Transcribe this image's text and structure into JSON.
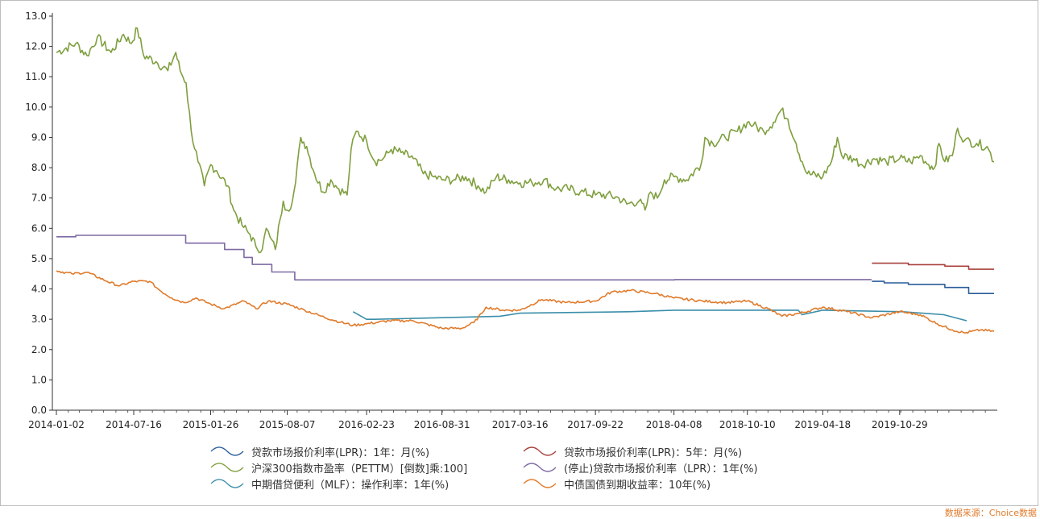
{
  "chart_data": {
    "type": "line",
    "title": "",
    "xlabel": "",
    "ylabel": "",
    "ylim": [
      0,
      13
    ],
    "y_ticks": [
      "0.0",
      "1.0",
      "2.0",
      "3.0",
      "4.0",
      "5.0",
      "6.0",
      "7.0",
      "8.0",
      "9.0",
      "10.0",
      "11.0",
      "12.0",
      "13.0"
    ],
    "x_range": [
      "2014-01-02",
      "2020-06-23"
    ],
    "x_ticks": [
      "2014-01-02",
      "2014-07-16",
      "2015-01-26",
      "2015-08-07",
      "2016-02-23",
      "2016-08-31",
      "2017-03-16",
      "2017-09-22",
      "2018-04-08",
      "2018-10-10",
      "2019-04-18",
      "2019-10-29"
    ],
    "grid": false,
    "legend_position": "bottom",
    "legend_columns": 2,
    "series": [
      {
        "name": "贷款市场报价利率(LPR)：1年：月(%)",
        "color": "#2a5c9a",
        "step": true,
        "points": [
          [
            "2019-08-20",
            4.25
          ],
          [
            "2019-09-20",
            4.2
          ],
          [
            "2019-11-20",
            4.15
          ],
          [
            "2020-02-20",
            4.05
          ],
          [
            "2020-04-20",
            3.85
          ],
          [
            "2020-06-23",
            3.85
          ]
        ]
      },
      {
        "name": "贷款市场报价利率(LPR)：5年：月(%)",
        "color": "#a8403c",
        "step": true,
        "points": [
          [
            "2019-08-20",
            4.85
          ],
          [
            "2019-11-20",
            4.8
          ],
          [
            "2020-02-20",
            4.75
          ],
          [
            "2020-04-20",
            4.65
          ],
          [
            "2020-06-23",
            4.65
          ]
        ]
      },
      {
        "name": "沪深300指数市盈率（PETTM）[倒数]乘:100]",
        "color": "#7f9f3e",
        "step": false,
        "points": [
          [
            "2014-01-02",
            11.8
          ],
          [
            "2014-02-20",
            12.1
          ],
          [
            "2014-03-20",
            11.7
          ],
          [
            "2014-04-15",
            12.3
          ],
          [
            "2014-05-20",
            11.8
          ],
          [
            "2014-06-20",
            12.4
          ],
          [
            "2014-07-10",
            12.1
          ],
          [
            "2014-07-25",
            12.6
          ],
          [
            "2014-08-10",
            11.7
          ],
          [
            "2014-09-10",
            11.5
          ],
          [
            "2014-10-10",
            11.2
          ],
          [
            "2014-10-30",
            11.8
          ],
          [
            "2014-11-10",
            11.2
          ],
          [
            "2014-11-25",
            10.8
          ],
          [
            "2014-12-08",
            9.2
          ],
          [
            "2014-12-25",
            8.2
          ],
          [
            "2015-01-10",
            7.4
          ],
          [
            "2015-01-26",
            8.1
          ],
          [
            "2015-02-10",
            7.9
          ],
          [
            "2015-03-10",
            7.4
          ],
          [
            "2015-03-25",
            6.6
          ],
          [
            "2015-04-15",
            6.1
          ],
          [
            "2015-05-05",
            5.8
          ],
          [
            "2015-05-20",
            5.4
          ],
          [
            "2015-06-05",
            5.3
          ],
          [
            "2015-06-15",
            6.0
          ],
          [
            "2015-06-25",
            5.7
          ],
          [
            "2015-07-08",
            5.3
          ],
          [
            "2015-07-20",
            6.3
          ],
          [
            "2015-07-28",
            6.9
          ],
          [
            "2015-08-07",
            6.6
          ],
          [
            "2015-08-20",
            6.9
          ],
          [
            "2015-08-28",
            7.5
          ],
          [
            "2015-09-10",
            9.0
          ],
          [
            "2015-09-25",
            8.7
          ],
          [
            "2015-10-15",
            7.8
          ],
          [
            "2015-11-05",
            7.2
          ],
          [
            "2015-11-25",
            7.6
          ],
          [
            "2015-12-15",
            7.3
          ],
          [
            "2016-01-05",
            7.1
          ],
          [
            "2016-01-15",
            8.6
          ],
          [
            "2016-01-28",
            9.2
          ],
          [
            "2016-02-23",
            8.9
          ],
          [
            "2016-03-15",
            8.2
          ],
          [
            "2016-04-05",
            8.3
          ],
          [
            "2016-04-25",
            8.6
          ],
          [
            "2016-05-20",
            8.5
          ],
          [
            "2016-06-20",
            8.3
          ],
          [
            "2016-07-15",
            7.8
          ],
          [
            "2016-08-10",
            7.7
          ],
          [
            "2016-08-31",
            7.6
          ],
          [
            "2016-09-30",
            7.6
          ],
          [
            "2016-10-30",
            7.7
          ],
          [
            "2016-11-30",
            7.4
          ],
          [
            "2016-12-20",
            7.2
          ],
          [
            "2017-01-15",
            7.7
          ],
          [
            "2017-02-15",
            7.6
          ],
          [
            "2017-03-16",
            7.5
          ],
          [
            "2017-04-15",
            7.5
          ],
          [
            "2017-05-15",
            7.6
          ],
          [
            "2017-06-15",
            7.3
          ],
          [
            "2017-07-15",
            7.3
          ],
          [
            "2017-08-15",
            7.2
          ],
          [
            "2017-09-22",
            7.1
          ],
          [
            "2017-10-20",
            7.1
          ],
          [
            "2017-11-20",
            7.0
          ],
          [
            "2017-12-10",
            6.8
          ],
          [
            "2018-01-10",
            6.9
          ],
          [
            "2018-01-25",
            6.6
          ],
          [
            "2018-02-08",
            7.2
          ],
          [
            "2018-02-25",
            7.0
          ],
          [
            "2018-03-15",
            7.6
          ],
          [
            "2018-04-08",
            7.7
          ],
          [
            "2018-05-10",
            7.6
          ],
          [
            "2018-06-15",
            8.1
          ],
          [
            "2018-06-25",
            9.0
          ],
          [
            "2018-07-15",
            8.8
          ],
          [
            "2018-08-15",
            9.0
          ],
          [
            "2018-09-15",
            9.2
          ],
          [
            "2018-10-10",
            9.5
          ],
          [
            "2018-10-25",
            9.4
          ],
          [
            "2018-11-20",
            9.2
          ],
          [
            "2018-12-15",
            9.5
          ],
          [
            "2019-01-03",
            9.9
          ],
          [
            "2019-01-20",
            9.6
          ],
          [
            "2019-02-10",
            8.8
          ],
          [
            "2019-02-25",
            8.2
          ],
          [
            "2019-03-10",
            7.8
          ],
          [
            "2019-04-18",
            7.7
          ],
          [
            "2019-05-10",
            8.2
          ],
          [
            "2019-05-25",
            9.0
          ],
          [
            "2019-06-05",
            8.4
          ],
          [
            "2019-07-05",
            8.3
          ],
          [
            "2019-07-25",
            8.1
          ],
          [
            "2019-08-25",
            8.3
          ],
          [
            "2019-09-25",
            8.2
          ],
          [
            "2019-10-29",
            8.3
          ],
          [
            "2019-11-25",
            8.2
          ],
          [
            "2019-12-20",
            8.4
          ],
          [
            "2020-01-10",
            8.1
          ],
          [
            "2020-01-25",
            8.0
          ],
          [
            "2020-02-05",
            8.8
          ],
          [
            "2020-02-20",
            8.2
          ],
          [
            "2020-03-10",
            8.4
          ],
          [
            "2020-03-23",
            9.3
          ],
          [
            "2020-04-10",
            8.9
          ],
          [
            "2020-05-10",
            8.8
          ],
          [
            "2020-06-05",
            8.7
          ],
          [
            "2020-06-23",
            8.2
          ]
        ]
      },
      {
        "name": "(停止)贷款市场报价利率（LPR）：1年(%)",
        "color": "#7e6aa3",
        "step": true,
        "points": [
          [
            "2014-01-02",
            5.72
          ],
          [
            "2014-02-20",
            5.77
          ],
          [
            "2014-11-24",
            5.51
          ],
          [
            "2015-03-02",
            5.3
          ],
          [
            "2015-04-20",
            5.04
          ],
          [
            "2015-05-11",
            4.81
          ],
          [
            "2015-06-29",
            4.56
          ],
          [
            "2015-08-26",
            4.3
          ],
          [
            "2015-10-26",
            4.3
          ],
          [
            "2018-04-10",
            4.31
          ],
          [
            "2019-08-19",
            4.31
          ]
        ]
      },
      {
        "name": "中期借贷便利（MLF）：操作利率：1年(%)",
        "color": "#3a8eaa",
        "step": false,
        "points": [
          [
            "2016-01-20",
            3.25
          ],
          [
            "2016-02-23",
            3.0
          ],
          [
            "2016-03-15",
            3.0
          ],
          [
            "2017-01-24",
            3.1
          ],
          [
            "2017-03-16",
            3.2
          ],
          [
            "2017-12-14",
            3.25
          ],
          [
            "2018-04-08",
            3.3
          ],
          [
            "2019-02-15",
            3.3
          ],
          [
            "2019-02-25",
            3.15
          ],
          [
            "2019-04-18",
            3.3
          ],
          [
            "2019-11-05",
            3.25
          ],
          [
            "2020-02-17",
            3.15
          ],
          [
            "2020-04-15",
            2.95
          ]
        ]
      },
      {
        "name": "中债国债到期收益率：10年(%)",
        "color": "#e07b2c",
        "step": false,
        "points": [
          [
            "2014-01-02",
            4.6
          ],
          [
            "2014-02-10",
            4.5
          ],
          [
            "2014-03-20",
            4.55
          ],
          [
            "2014-05-10",
            4.25
          ],
          [
            "2014-06-10",
            4.1
          ],
          [
            "2014-07-16",
            4.25
          ],
          [
            "2014-08-25",
            4.25
          ],
          [
            "2014-09-20",
            3.95
          ],
          [
            "2014-10-20",
            3.7
          ],
          [
            "2014-11-20",
            3.55
          ],
          [
            "2014-12-20",
            3.7
          ],
          [
            "2015-01-26",
            3.5
          ],
          [
            "2015-03-01",
            3.35
          ],
          [
            "2015-04-20",
            3.6
          ],
          [
            "2015-05-20",
            3.35
          ],
          [
            "2015-06-20",
            3.6
          ],
          [
            "2015-08-07",
            3.5
          ],
          [
            "2015-09-20",
            3.3
          ],
          [
            "2015-11-01",
            3.1
          ],
          [
            "2015-12-20",
            2.9
          ],
          [
            "2016-01-20",
            2.8
          ],
          [
            "2016-02-23",
            2.85
          ],
          [
            "2016-04-20",
            2.95
          ],
          [
            "2016-06-20",
            2.95
          ],
          [
            "2016-08-31",
            2.7
          ],
          [
            "2016-10-20",
            2.7
          ],
          [
            "2016-11-20",
            2.9
          ],
          [
            "2016-12-10",
            3.2
          ],
          [
            "2016-12-20",
            3.4
          ],
          [
            "2017-02-01",
            3.3
          ],
          [
            "2017-03-16",
            3.3
          ],
          [
            "2017-05-10",
            3.65
          ],
          [
            "2017-07-10",
            3.55
          ],
          [
            "2017-09-22",
            3.6
          ],
          [
            "2017-11-01",
            3.9
          ],
          [
            "2017-12-20",
            3.95
          ],
          [
            "2018-02-20",
            3.85
          ],
          [
            "2018-04-08",
            3.7
          ],
          [
            "2018-06-20",
            3.6
          ],
          [
            "2018-08-20",
            3.55
          ],
          [
            "2018-10-10",
            3.6
          ],
          [
            "2018-12-01",
            3.35
          ],
          [
            "2019-01-05",
            3.1
          ],
          [
            "2019-02-20",
            3.2
          ],
          [
            "2019-04-18",
            3.4
          ],
          [
            "2019-06-20",
            3.25
          ],
          [
            "2019-08-20",
            3.05
          ],
          [
            "2019-10-29",
            3.25
          ],
          [
            "2019-12-20",
            3.15
          ],
          [
            "2020-02-01",
            2.85
          ],
          [
            "2020-03-10",
            2.65
          ],
          [
            "2020-04-10",
            2.55
          ],
          [
            "2020-05-20",
            2.65
          ],
          [
            "2020-06-23",
            2.6
          ]
        ]
      }
    ]
  },
  "source": "数据来源：Choice数据"
}
